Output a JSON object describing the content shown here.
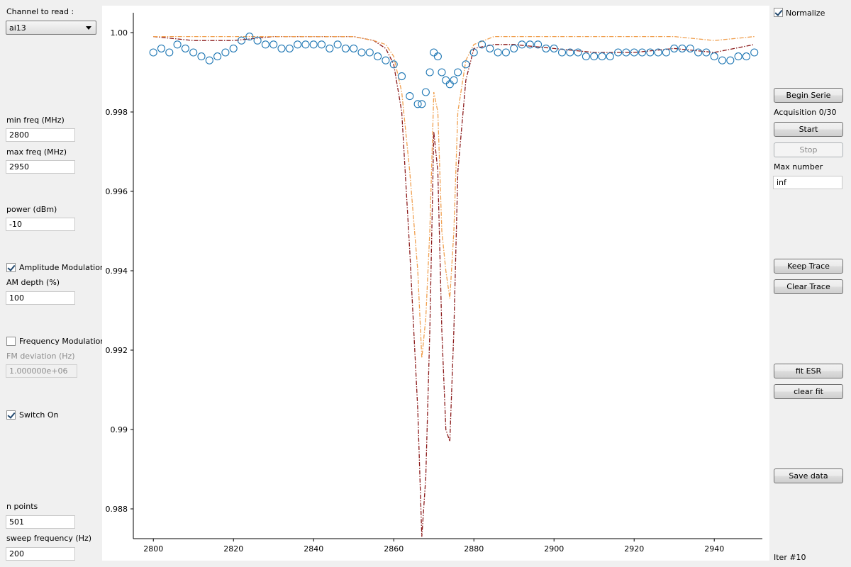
{
  "left_panel": {
    "channel_label": "Channel to read :",
    "channel_value": "ai13",
    "min_freq_label": "min freq (MHz)",
    "min_freq_value": "2800",
    "max_freq_label": "max freq (MHz)",
    "max_freq_value": "2950",
    "power_label": "power (dBm)",
    "power_value": "-10",
    "am_label": "Amplitude Modulation",
    "am_checked": true,
    "am_depth_label": "AM depth (%)",
    "am_depth_value": "100",
    "fm_label": "Frequency Modulation",
    "fm_checked": false,
    "fm_dev_label": "FM deviation (Hz)",
    "fm_dev_value": "1.000000e+06",
    "switch_label": "Switch On",
    "switch_checked": true,
    "npoints_label": "n points",
    "npoints_value": "501",
    "sweep_label": "sweep frequency (Hz)",
    "sweep_value": "200"
  },
  "right_panel": {
    "normalize_label": "Normalize",
    "normalize_checked": true,
    "begin_serie": "Begin Serie",
    "acquisition": "Acquisition 0/30",
    "start": "Start",
    "stop": "Stop",
    "max_number_label": "Max number",
    "max_number_value": "inf",
    "keep_trace": "Keep Trace",
    "clear_trace": "Clear Trace",
    "fit_esr": "fit ESR",
    "clear_fit": "clear fit",
    "save_data": "Save data",
    "iter": "Iter #10"
  },
  "chart_data": {
    "type": "line",
    "title": "",
    "xlabel": "",
    "ylabel": "",
    "xlim": [
      2795,
      2952
    ],
    "ylim": [
      0.98725,
      1.0005
    ],
    "x_ticks": [
      "2800",
      "2820",
      "2840",
      "2860",
      "2880",
      "2900",
      "2920",
      "2940"
    ],
    "y_ticks": [
      "1.00",
      "0.998",
      "0.996",
      "0.994",
      "0.992",
      "0.99",
      "0.988"
    ],
    "grid": false,
    "legend": "none",
    "series": [
      {
        "color": "#8b1a1a",
        "style": "dash-dot",
        "x": [
          2800,
          2810,
          2820,
          2830,
          2840,
          2850,
          2855,
          2858,
          2860,
          2862,
          2864,
          2866,
          2867,
          2868,
          2869,
          2870,
          2871,
          2872,
          2873,
          2874,
          2875,
          2876,
          2878,
          2880,
          2885,
          2890,
          2900,
          2910,
          2920,
          2930,
          2940,
          2950
        ],
        "values": [
          0.9999,
          0.9998,
          0.9998,
          0.9999,
          0.9999,
          0.9999,
          0.9998,
          0.9996,
          0.9992,
          0.998,
          0.9945,
          0.9905,
          0.9873,
          0.9888,
          0.9925,
          0.9975,
          0.9965,
          0.9925,
          0.99,
          0.9897,
          0.9925,
          0.9965,
          0.9988,
          0.9996,
          0.9997,
          0.9997,
          0.9996,
          0.9995,
          0.9995,
          0.9996,
          0.9995,
          0.9997
        ]
      },
      {
        "color": "#f0a050",
        "style": "dash-dot",
        "x": [
          2800,
          2810,
          2820,
          2830,
          2840,
          2850,
          2855,
          2858,
          2860,
          2862,
          2864,
          2866,
          2867,
          2868,
          2869,
          2870,
          2871,
          2872,
          2873,
          2874,
          2875,
          2876,
          2878,
          2880,
          2885,
          2890,
          2900,
          2910,
          2920,
          2930,
          2940,
          2950
        ],
        "values": [
          0.9999,
          0.9999,
          0.9999,
          0.9999,
          0.9999,
          0.9999,
          0.9998,
          0.9997,
          0.9994,
          0.9985,
          0.9965,
          0.994,
          0.9918,
          0.9928,
          0.995,
          0.9985,
          0.998,
          0.995,
          0.994,
          0.9933,
          0.995,
          0.998,
          0.9993,
          0.9997,
          0.9999,
          0.9999,
          0.9999,
          0.9999,
          0.9999,
          0.9999,
          0.9998,
          0.9999
        ]
      },
      {
        "color": "#1f77b4",
        "style": "circles",
        "x": [
          2800,
          2802,
          2804,
          2806,
          2808,
          2810,
          2812,
          2814,
          2816,
          2818,
          2820,
          2822,
          2824,
          2826,
          2828,
          2830,
          2832,
          2834,
          2836,
          2838,
          2840,
          2842,
          2844,
          2846,
          2848,
          2850,
          2852,
          2854,
          2856,
          2858,
          2860,
          2862,
          2864,
          2866,
          2867,
          2868,
          2869,
          2870,
          2871,
          2872,
          2873,
          2874,
          2875,
          2876,
          2878,
          2880,
          2882,
          2884,
          2886,
          2888,
          2890,
          2892,
          2894,
          2896,
          2898,
          2900,
          2902,
          2904,
          2906,
          2908,
          2910,
          2912,
          2914,
          2916,
          2918,
          2920,
          2922,
          2924,
          2926,
          2928,
          2930,
          2932,
          2934,
          2936,
          2938,
          2940,
          2942,
          2944,
          2946,
          2948,
          2950
        ],
        "values": [
          0.9995,
          0.9996,
          0.9995,
          0.9997,
          0.9996,
          0.9995,
          0.9994,
          0.9993,
          0.9994,
          0.9995,
          0.9996,
          0.9998,
          0.9999,
          0.9998,
          0.9997,
          0.9997,
          0.9996,
          0.9996,
          0.9997,
          0.9997,
          0.9997,
          0.9997,
          0.9996,
          0.9997,
          0.9996,
          0.9996,
          0.9995,
          0.9995,
          0.9994,
          0.9993,
          0.9992,
          0.9989,
          0.9984,
          0.9982,
          0.9982,
          0.9985,
          0.999,
          0.9995,
          0.9994,
          0.999,
          0.9988,
          0.9987,
          0.9988,
          0.999,
          0.9992,
          0.9995,
          0.9997,
          0.9996,
          0.9995,
          0.9995,
          0.9996,
          0.9997,
          0.9997,
          0.9997,
          0.9996,
          0.9996,
          0.9995,
          0.9995,
          0.9995,
          0.9994,
          0.9994,
          0.9994,
          0.9994,
          0.9995,
          0.9995,
          0.9995,
          0.9995,
          0.9995,
          0.9995,
          0.9995,
          0.9996,
          0.9996,
          0.9996,
          0.9995,
          0.9995,
          0.9994,
          0.9993,
          0.9993,
          0.9994,
          0.9994,
          0.9995
        ]
      }
    ]
  }
}
